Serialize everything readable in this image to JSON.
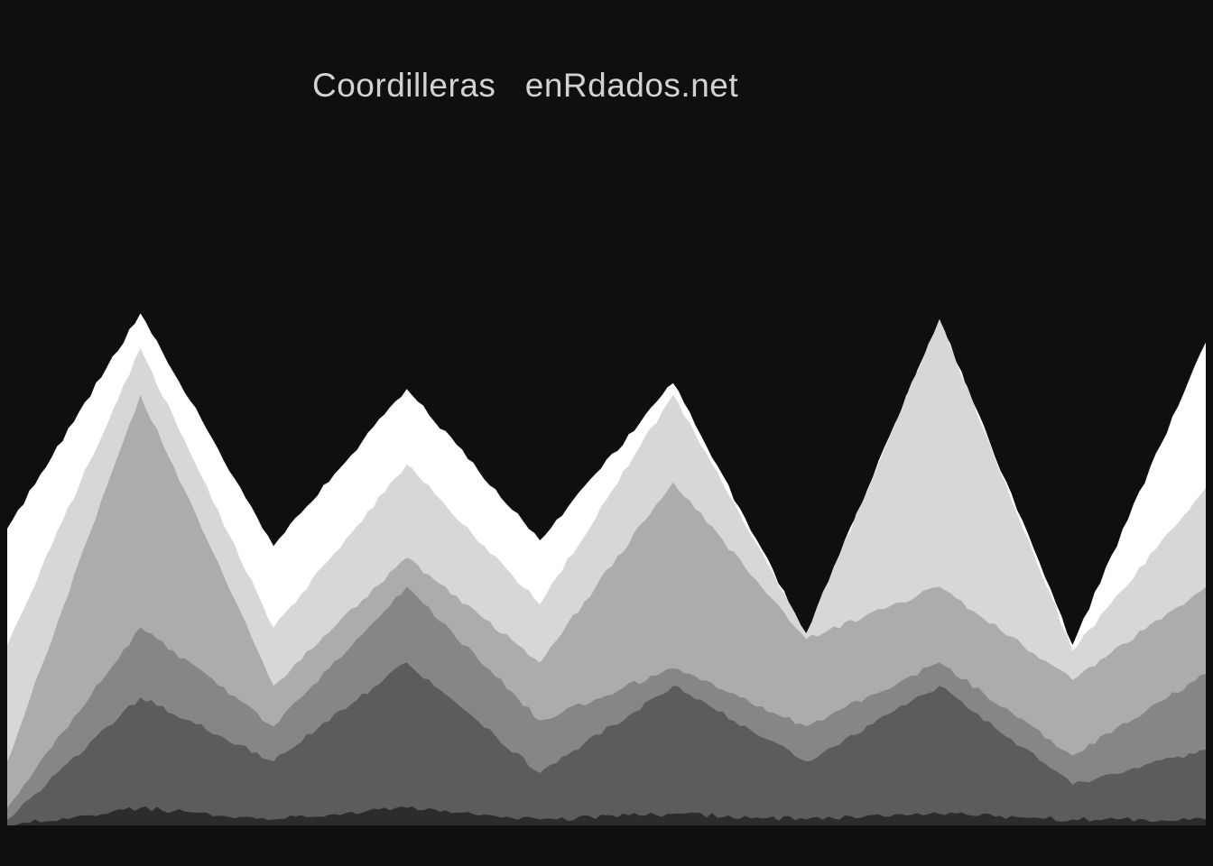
{
  "chart_data": {
    "type": "area",
    "title": "Coordilleras   enRdados.net",
    "xlabel": "",
    "ylabel": "",
    "grid": false,
    "legend": "none",
    "stacked": true,
    "x": [
      0,
      1,
      2,
      3,
      4,
      5,
      6,
      7,
      8,
      9
    ],
    "ylim": [
      0,
      100
    ],
    "series": [
      {
        "color": "#2c2c2c",
        "values": [
          0,
          3,
          1,
          3,
          1,
          2,
          1,
          2,
          1,
          1
        ]
      },
      {
        "color": "#5c5c5c",
        "values": [
          1,
          19,
          10,
          25,
          8,
          22,
          10,
          22,
          6,
          12
        ]
      },
      {
        "color": "#868686",
        "values": [
          2,
          12,
          6,
          13,
          9,
          3,
          6,
          4,
          5,
          13
        ]
      },
      {
        "color": "#acacac",
        "values": [
          8,
          40,
          7,
          5,
          10,
          32,
          15,
          13,
          13,
          15
        ]
      },
      {
        "color": "#d7d7d7",
        "values": [
          20,
          8,
          10,
          16,
          10,
          15,
          1,
          46,
          5,
          17
        ]
      },
      {
        "color": "#ffffff",
        "values": [
          20,
          6,
          14,
          13,
          11,
          2,
          0,
          0,
          1,
          25
        ]
      }
    ]
  }
}
